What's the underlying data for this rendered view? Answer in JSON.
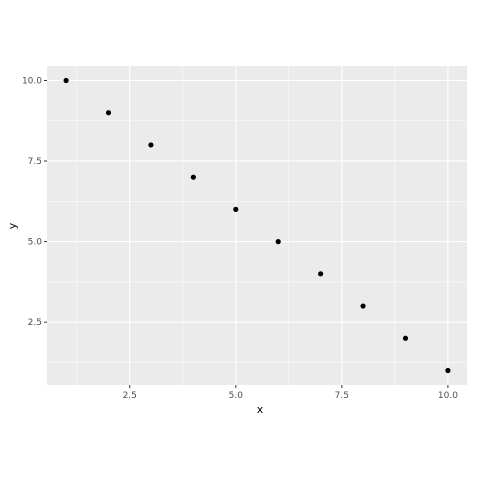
{
  "chart_data": {
    "type": "scatter",
    "title": "",
    "xlabel": "x",
    "ylabel": "y",
    "xlim": [
      0.55,
      10.45
    ],
    "ylim": [
      0.55,
      10.45
    ],
    "x_ticks": [
      2.5,
      5.0,
      7.5,
      10.0
    ],
    "x_tick_labels": [
      "2.5",
      "5.0",
      "7.5",
      "10.0"
    ],
    "y_ticks": [
      2.5,
      5.0,
      7.5,
      10.0
    ],
    "y_tick_labels": [
      "2.5",
      "5.0",
      "7.5",
      "10.0"
    ],
    "grid": true,
    "legend": "none",
    "colors": {
      "panel": "#ebebeb",
      "grid": "#ffffff",
      "point": "#000000",
      "tick_text": "#4d4d4d"
    },
    "points": [
      {
        "x": 1,
        "y": 10
      },
      {
        "x": 2,
        "y": 9
      },
      {
        "x": 3,
        "y": 8
      },
      {
        "x": 4,
        "y": 7
      },
      {
        "x": 5,
        "y": 6
      },
      {
        "x": 6,
        "y": 5
      },
      {
        "x": 7,
        "y": 4
      },
      {
        "x": 8,
        "y": 3
      },
      {
        "x": 9,
        "y": 2
      },
      {
        "x": 10,
        "y": 1
      }
    ]
  }
}
